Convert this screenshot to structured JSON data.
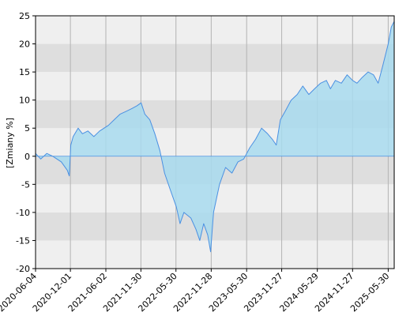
{
  "chart_data": {
    "type": "area",
    "ylabel": "[Zmiany %]",
    "ylim": [
      -20,
      25
    ],
    "yticks": [
      -20,
      -15,
      -10,
      -5,
      0,
      5,
      10,
      15,
      20,
      25
    ],
    "xlim": [
      "2020-06-04",
      "2025-06-30"
    ],
    "xticks": [
      "2020-06-04",
      "2020-12-01",
      "2021-06-02",
      "2021-11-30",
      "2022-05-30",
      "2022-11-28",
      "2023-05-30",
      "2023-11-27",
      "2024-05-29",
      "2024-11-27",
      "2025-05-30"
    ],
    "grid": true,
    "legend": "none",
    "colors": {
      "line": "#4a90e2",
      "fill": "#a8dbee",
      "band_light": "#efefef",
      "band_dark": "#dedede",
      "gridline": "#b3b3b3",
      "frame": "#000000"
    },
    "series": [
      {
        "x": [
          "2020-06-04",
          "2020-07-01",
          "2020-08-01",
          "2020-09-01",
          "2020-10-15",
          "2020-11-15",
          "2020-11-25",
          "2020-12-03",
          "2020-12-15",
          "2021-01-10",
          "2021-02-01",
          "2021-03-01",
          "2021-04-01",
          "2021-05-01",
          "2021-06-15",
          "2021-07-15",
          "2021-08-15",
          "2021-09-15",
          "2021-10-15",
          "2021-11-10",
          "2021-12-01",
          "2021-12-20",
          "2022-01-15",
          "2022-02-10",
          "2022-03-08",
          "2022-04-01",
          "2022-05-01",
          "2022-06-01",
          "2022-06-20",
          "2022-07-10",
          "2022-08-15",
          "2022-09-10",
          "2022-09-30",
          "2022-10-20",
          "2022-11-10",
          "2022-11-25",
          "2022-12-10",
          "2023-01-10",
          "2023-02-10",
          "2023-03-15",
          "2023-04-15",
          "2023-05-15",
          "2023-06-15",
          "2023-07-15",
          "2023-08-15",
          "2023-09-15",
          "2023-10-10",
          "2023-10-30",
          "2023-11-20",
          "2023-12-15",
          "2024-01-15",
          "2024-02-15",
          "2024-03-15",
          "2024-04-15",
          "2024-05-15",
          "2024-06-15",
          "2024-07-15",
          "2024-08-05",
          "2024-08-30",
          "2024-09-30",
          "2024-10-30",
          "2024-11-27",
          "2024-12-20",
          "2025-01-15",
          "2025-02-15",
          "2025-03-15",
          "2025-04-08",
          "2025-05-01",
          "2025-05-30",
          "2025-06-15",
          "2025-06-30"
        ],
        "y": [
          0.5,
          -0.5,
          0.5,
          0,
          -1,
          -2.5,
          -3.5,
          2,
          3.5,
          5,
          4,
          4.5,
          3.5,
          4.5,
          5.5,
          6.5,
          7.5,
          8,
          8.5,
          9,
          9.5,
          7.5,
          6.5,
          4,
          1,
          -3,
          -6,
          -9,
          -12,
          -10,
          -11,
          -13,
          -15,
          -12,
          -14,
          -17,
          -10,
          -5,
          -2,
          -3,
          -1,
          -0.5,
          1.5,
          3,
          5,
          4,
          3,
          2,
          6.5,
          8,
          10,
          11,
          12.5,
          11,
          12,
          13,
          13.5,
          12,
          13.5,
          13,
          14.5,
          13.5,
          13,
          14,
          15,
          14.5,
          13,
          16,
          20,
          23,
          24
        ]
      }
    ]
  }
}
